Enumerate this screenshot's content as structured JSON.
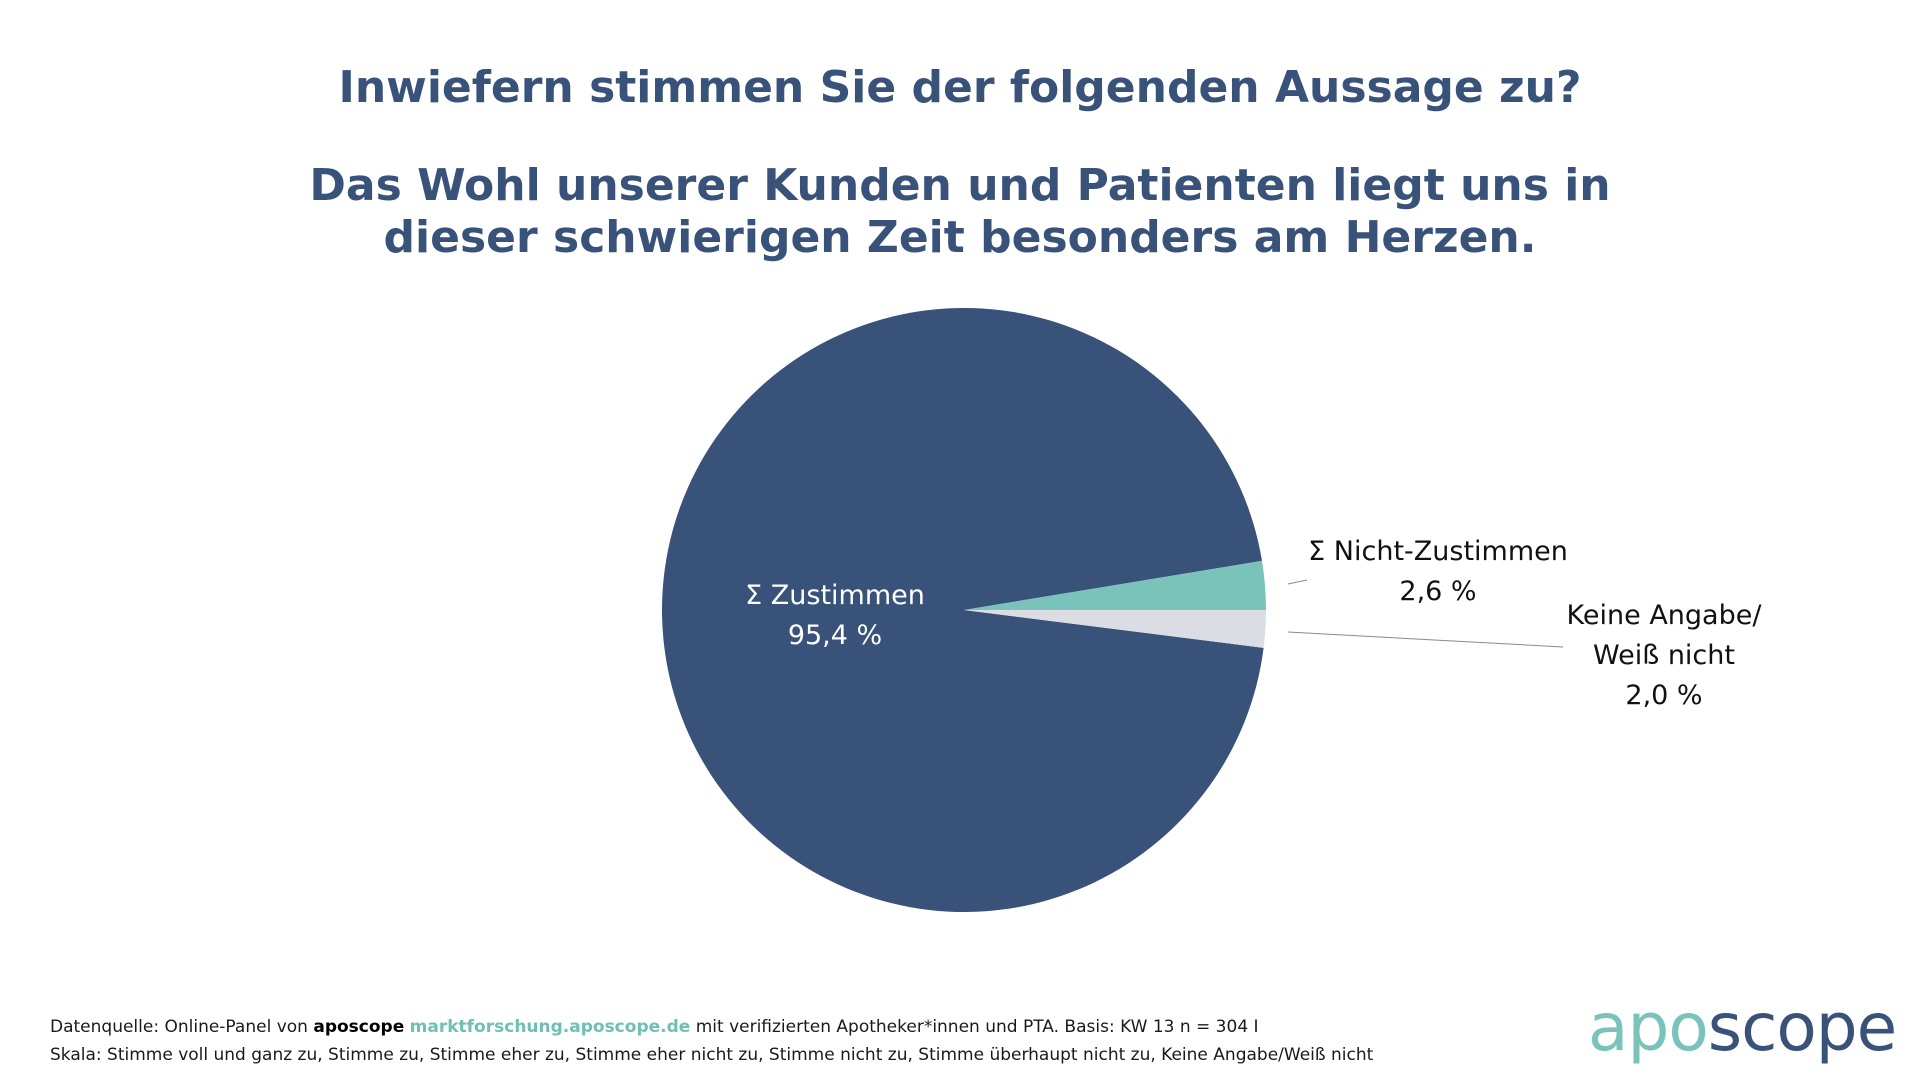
{
  "title_line1": "Inwiefern stimmen Sie der folgenden Aussage zu?",
  "title_line2a": "Das Wohl unserer Kunden und Patienten liegt uns in",
  "title_line2b": "dieser schwierigen Zeit besonders am Herzen.",
  "colors": {
    "title": "#39527a",
    "agree": "#39527a",
    "disagree": "#79c3ba",
    "no_answer": "#dcdde4",
    "link": "#6fbfb4"
  },
  "chart_data": {
    "type": "pie",
    "title": "Inwiefern stimmen Sie der folgenden Aussage zu? Das Wohl unserer Kunden und Patienten liegt uns in dieser schwierigen Zeit besonders am Herzen.",
    "unit": "%",
    "slices": [
      {
        "name": "Σ Zustimmen",
        "label_lines": [
          "Σ Zustimmen"
        ],
        "value": 95.4,
        "value_text": "95,4 %",
        "color": "#39527a",
        "label_position": "inside"
      },
      {
        "name": "Σ Nicht-Zustimmen",
        "label_lines": [
          "Σ Nicht-Zustimmen"
        ],
        "value": 2.6,
        "value_text": "2,6 %",
        "color": "#79c3ba",
        "label_position": "outside"
      },
      {
        "name": "Keine Angabe/Weiß nicht",
        "label_lines": [
          "Keine Angabe/",
          "Weiß nicht"
        ],
        "value": 2.0,
        "value_text": "2,0 %",
        "color": "#dcdde4",
        "label_position": "outside"
      }
    ]
  },
  "footer": {
    "line1_prefix": "Datenquelle: Online-Panel von ",
    "line1_brand": "aposcope",
    "line1_link": "marktforschung.aposcope.de",
    "line1_suffix": " mit verifizierten Apotheker*innen und PTA. Basis: KW 13 n = 304 I",
    "line2": "Skala: Stimme voll und ganz zu, Stimme zu, Stimme eher zu, Stimme eher nicht zu, Stimme nicht zu, Stimme überhaupt nicht zu, Keine Angabe/Weiß nicht"
  },
  "logo": {
    "part_a": "apo",
    "part_b": "scope"
  }
}
